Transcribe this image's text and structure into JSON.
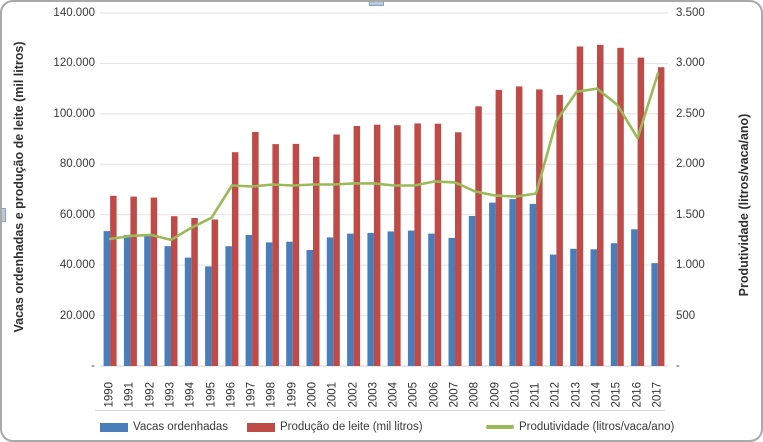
{
  "chart_data": {
    "type": "combo-bar-line",
    "title": "",
    "categories": [
      "1990",
      "1991",
      "1992",
      "1993",
      "1994",
      "1995",
      "1996",
      "1997",
      "1998",
      "1999",
      "2000",
      "2001",
      "2002",
      "2003",
      "2004",
      "2005",
      "2006",
      "2007",
      "2008",
      "2009",
      "2010",
      "2011",
      "2012",
      "2013",
      "2014",
      "2015",
      "2016",
      "2017"
    ],
    "series": [
      {
        "name": "Vacas ordenhadas",
        "type": "bar",
        "axis": "left",
        "color": "#4a7ebb",
        "values": [
          53500,
          52000,
          51500,
          47500,
          43000,
          39500,
          47500,
          52000,
          49000,
          49300,
          46000,
          51000,
          52500,
          52800,
          53400,
          53700,
          52500,
          50800,
          59500,
          64800,
          66200,
          64300,
          44200,
          46500,
          46300,
          48700,
          54200,
          40800
        ]
      },
      {
        "name": "Produção de leite (mil litros)",
        "type": "bar",
        "axis": "left",
        "color": "#be4b48",
        "values": [
          67500,
          67200,
          66800,
          59400,
          58700,
          58100,
          84800,
          92800,
          88000,
          88100,
          83000,
          91800,
          95200,
          95700,
          95500,
          96200,
          96100,
          92700,
          103000,
          109500,
          110900,
          109700,
          107500,
          126700,
          127400,
          126200,
          122300,
          118500
        ]
      },
      {
        "name": "Produtividade (litros/vaca/ano)",
        "type": "line",
        "axis": "right",
        "color": "#9aba58",
        "values": [
          1260,
          1290,
          1300,
          1250,
          1370,
          1470,
          1790,
          1780,
          1800,
          1790,
          1800,
          1800,
          1810,
          1810,
          1790,
          1790,
          1830,
          1820,
          1730,
          1690,
          1680,
          1710,
          2430,
          2720,
          2750,
          2590,
          2260,
          2900
        ]
      }
    ],
    "left_axis": {
      "title": "Vacas ordenhadas e produção de leite (mil litros)",
      "min": 0,
      "max": 140000,
      "tick_step": 20000,
      "ticks": [
        "-",
        "20.000",
        "40.000",
        "60.000",
        "80.000",
        "100.000",
        "120.000",
        "140.000"
      ]
    },
    "right_axis": {
      "title": "Produtividade (litros/vaca/ano)",
      "min": 0,
      "max": 3500,
      "tick_step": 500,
      "ticks": [
        "-",
        "500",
        "1.000",
        "1.500",
        "2.000",
        "2.500",
        "3.000",
        "3.500"
      ]
    },
    "grid": true,
    "legend_position": "bottom",
    "colors": {
      "gridline": "#e2e2e2",
      "axis_line": "#d0d0d0",
      "text": "#3a3a3a",
      "frame_border": "#a9a9a9",
      "handle_fill": "#b9c9dc",
      "handle_border": "#8aa2bd"
    }
  }
}
